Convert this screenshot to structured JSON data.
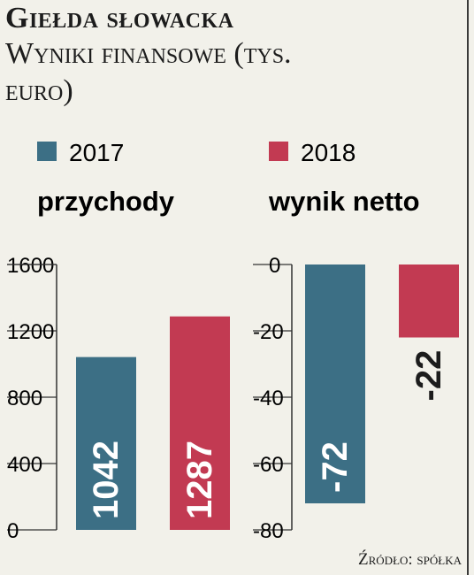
{
  "title": "Giełda słowacka",
  "subtitle": "Wyniki finansowe (tys. euro)",
  "source": "Źródło: spółka",
  "colors": {
    "2017": "#3c6f85",
    "2018": "#c23a52"
  },
  "chart_data": [
    {
      "type": "bar",
      "title": "przychody",
      "categories": [
        "2017",
        "2018"
      ],
      "series": [
        {
          "name": "2017",
          "values": [
            1042,
            null
          ]
        },
        {
          "name": "2018",
          "values": [
            null,
            1287
          ]
        }
      ],
      "values": [
        1042,
        1287
      ],
      "ylim": [
        0,
        1600
      ],
      "yticks": [
        0,
        400,
        800,
        1200,
        1600
      ],
      "data_labels": [
        "1042",
        "1287"
      ],
      "grid": false
    },
    {
      "type": "bar",
      "title": "wynik netto",
      "categories": [
        "2017",
        "2018"
      ],
      "values": [
        -72,
        -22
      ],
      "ylim": [
        -80,
        0
      ],
      "yticks": [
        0,
        -20,
        -40,
        -60,
        -80
      ],
      "data_labels": [
        "-72",
        "-22"
      ],
      "grid": false
    }
  ],
  "legend": [
    "2017",
    "2018"
  ]
}
